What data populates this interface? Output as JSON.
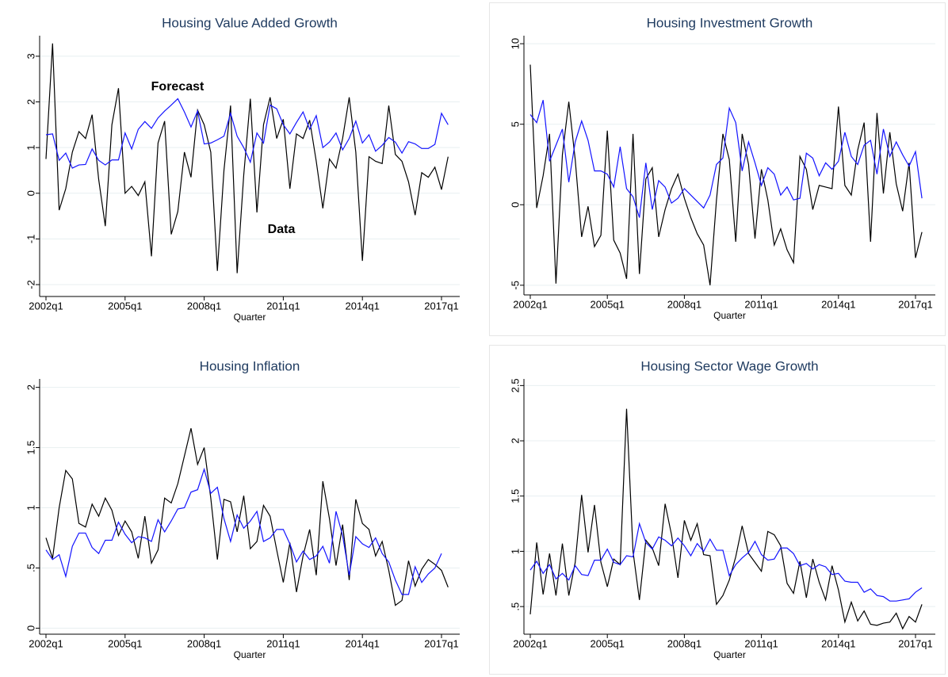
{
  "chart_data": [
    {
      "type": "line",
      "title": "Housing Value Added Growth",
      "xlabel": "Quarter",
      "categories": [
        "2002q1",
        null,
        null,
        null,
        null,
        null,
        null,
        null,
        null,
        null,
        null,
        null,
        "2005q1",
        null,
        null,
        null,
        null,
        null,
        null,
        null,
        null,
        null,
        null,
        null,
        "2008q1",
        null,
        null,
        null,
        null,
        null,
        null,
        null,
        null,
        null,
        null,
        null,
        "2011q1",
        null,
        null,
        null,
        null,
        null,
        null,
        null,
        null,
        null,
        null,
        null,
        "2014q1",
        null,
        null,
        null,
        null,
        null,
        null,
        null,
        null,
        null,
        null,
        null,
        "2017q1",
        null
      ],
      "ylim": [
        -2.26,
        3.45
      ],
      "yticks": [
        -2,
        -1,
        0,
        1,
        2,
        3
      ],
      "grid": true,
      "series": [
        {
          "name": "Data",
          "color": "#000000",
          "values": [
            0.75,
            3.28,
            -0.37,
            0.1,
            0.9,
            1.35,
            1.2,
            1.72,
            0.3,
            -0.72,
            1.5,
            2.3,
            0,
            0.15,
            -0.05,
            0.25,
            -1.38,
            1.1,
            1.58,
            -0.9,
            -0.4,
            0.9,
            0.35,
            1.82,
            1.5,
            0.9,
            -1.7,
            0.5,
            1.92,
            -1.75,
            0.4,
            2.07,
            -0.42,
            1.5,
            2.1,
            1.2,
            1.62,
            0.1,
            1.3,
            1.2,
            1.6,
            0.7,
            -0.33,
            0.75,
            0.55,
            1.2,
            2.1,
            0.9,
            -1.48,
            0.8,
            0.7,
            0.65,
            1.92,
            0.85,
            0.7,
            0.25,
            -0.48,
            0.45,
            0.35,
            0.57,
            0.08,
            0.8
          ]
        },
        {
          "name": "Forecast",
          "color": "#1414ff",
          "values": [
            1.28,
            1.3,
            0.72,
            0.88,
            0.55,
            0.62,
            0.63,
            0.97,
            0.72,
            0.62,
            0.73,
            0.73,
            1.32,
            0.97,
            1.4,
            1.57,
            1.42,
            1.65,
            1.8,
            1.93,
            2.07,
            1.78,
            1.45,
            1.8,
            1.08,
            1.1,
            1.17,
            1.25,
            1.75,
            1.25,
            1.0,
            0.68,
            1.32,
            1.1,
            1.93,
            1.85,
            1.5,
            1.3,
            1.55,
            1.78,
            1.4,
            1.7,
            1.0,
            1.12,
            1.32,
            0.95,
            1.2,
            1.58,
            1.1,
            1.28,
            0.92,
            1.05,
            1.22,
            1.12,
            0.88,
            1.13,
            1.08,
            0.98,
            0.98,
            1.07,
            1.75,
            1.5
          ]
        }
      ]
    },
    {
      "type": "line",
      "title": "Housing Investment Growth",
      "xlabel": "Quarter",
      "categories": [
        "2002q1",
        null,
        null,
        null,
        null,
        null,
        null,
        null,
        null,
        null,
        null,
        null,
        "2005q1",
        null,
        null,
        null,
        null,
        null,
        null,
        null,
        null,
        null,
        null,
        null,
        "2008q1",
        null,
        null,
        null,
        null,
        null,
        null,
        null,
        null,
        null,
        null,
        null,
        "2011q1",
        null,
        null,
        null,
        null,
        null,
        null,
        null,
        null,
        null,
        null,
        null,
        "2014q1",
        null,
        null,
        null,
        null,
        null,
        null,
        null,
        null,
        null,
        null,
        null,
        "2017q1",
        null
      ],
      "ylim": [
        -5.6,
        10.5
      ],
      "yticks": [
        -5,
        0,
        5,
        10
      ],
      "grid": true,
      "series": [
        {
          "color": "#000000",
          "values": [
            8.7,
            -0.2,
            1.8,
            4.4,
            -4.9,
            3.1,
            6.4,
            2.8,
            -2.0,
            -0.1,
            -2.6,
            -1.9,
            4.6,
            -2.2,
            -3.0,
            -4.6,
            4.4,
            -4.3,
            1.6,
            2.3,
            -2.0,
            -0.3,
            1.0,
            1.9,
            0.4,
            -0.8,
            -1.8,
            -2.5,
            -5.0,
            0.3,
            4.4,
            2.8,
            -2.3,
            4.4,
            2.5,
            -2.1,
            2.2,
            0.3,
            -2.5,
            -1.5,
            -2.8,
            -3.6,
            3.0,
            2.2,
            -0.3,
            1.2,
            1.1,
            1.0,
            6.1,
            1.2,
            0.6,
            3.4,
            5.1,
            -2.3,
            5.7,
            0.7,
            4.5,
            1.3,
            -0.4,
            2.6,
            -3.3,
            -1.7
          ]
        },
        {
          "color": "#1414ff",
          "values": [
            5.6,
            5.1,
            6.5,
            2.7,
            3.7,
            4.7,
            1.4,
            3.9,
            5.2,
            4.0,
            2.1,
            2.1,
            1.9,
            1.1,
            3.6,
            1.0,
            0.5,
            -0.8,
            2.6,
            -0.3,
            1.5,
            1.1,
            0.1,
            0.4,
            1.0,
            0.6,
            0.2,
            -0.2,
            0.6,
            2.5,
            2.9,
            6.0,
            5.1,
            2.1,
            3.9,
            2.6,
            1.2,
            2.3,
            1.9,
            0.6,
            1.1,
            0.3,
            0.4,
            3.2,
            2.9,
            1.8,
            2.6,
            2.2,
            2.7,
            4.5,
            3.0,
            2.5,
            3.7,
            4.0,
            1.9,
            4.7,
            3.0,
            3.9,
            3.1,
            2.4,
            3.3,
            0.4
          ]
        }
      ]
    },
    {
      "type": "line",
      "title": "Housing Inflation",
      "xlabel": "Quarter",
      "categories": [
        "2002q1",
        null,
        null,
        null,
        null,
        null,
        null,
        null,
        null,
        null,
        null,
        null,
        "2005q1",
        null,
        null,
        null,
        null,
        null,
        null,
        null,
        null,
        null,
        null,
        null,
        "2008q1",
        null,
        null,
        null,
        null,
        null,
        null,
        null,
        null,
        null,
        null,
        null,
        "2011q1",
        null,
        null,
        null,
        null,
        null,
        null,
        null,
        null,
        null,
        null,
        null,
        "2014q1",
        null,
        null,
        null,
        null,
        null,
        null,
        null,
        null,
        null,
        null,
        null,
        "2017q1",
        null
      ],
      "ylim": [
        -0.05,
        2.07
      ],
      "yticks": [
        0,
        {
          "value": 0.5,
          "label": ".5"
        },
        1,
        1.5,
        2
      ],
      "grid": true,
      "series": [
        {
          "color": "#000000",
          "values": [
            0.75,
            0.58,
            1.0,
            1.31,
            1.24,
            0.87,
            0.84,
            1.03,
            0.93,
            1.08,
            0.98,
            0.77,
            0.89,
            0.8,
            0.58,
            0.93,
            0.54,
            0.65,
            1.08,
            1.04,
            1.2,
            1.43,
            1.66,
            1.36,
            1.5,
            1.08,
            0.57,
            1.07,
            1.05,
            0.8,
            1.1,
            0.66,
            0.72,
            1.02,
            0.93,
            0.65,
            0.38,
            0.71,
            0.3,
            0.6,
            0.82,
            0.44,
            1.22,
            0.91,
            0.52,
            0.86,
            0.4,
            1.07,
            0.87,
            0.82,
            0.6,
            0.72,
            0.48,
            0.19,
            0.23,
            0.56,
            0.35,
            0.49,
            0.57,
            0.53,
            0.48,
            0.34
          ]
        },
        {
          "color": "#1414ff",
          "values": [
            0.65,
            0.57,
            0.61,
            0.43,
            0.68,
            0.79,
            0.79,
            0.67,
            0.62,
            0.73,
            0.73,
            0.88,
            0.78,
            0.71,
            0.76,
            0.75,
            0.72,
            0.9,
            0.8,
            0.89,
            0.99,
            1.0,
            1.13,
            1.15,
            1.32,
            1.12,
            1.17,
            0.91,
            0.72,
            0.94,
            0.83,
            0.89,
            0.97,
            0.72,
            0.75,
            0.82,
            0.82,
            0.7,
            0.55,
            0.64,
            0.57,
            0.6,
            0.68,
            0.54,
            0.97,
            0.77,
            0.44,
            0.76,
            0.7,
            0.67,
            0.75,
            0.62,
            0.55,
            0.4,
            0.28,
            0.28,
            0.51,
            0.38,
            0.45,
            0.5,
            0.62,
            null
          ]
        }
      ]
    },
    {
      "type": "line",
      "title": "Housing Sector Wage Growth",
      "xlabel": "Quarter",
      "categories": [
        "2002q1",
        null,
        null,
        null,
        null,
        null,
        null,
        null,
        null,
        null,
        null,
        null,
        "2005q1",
        null,
        null,
        null,
        null,
        null,
        null,
        null,
        null,
        null,
        null,
        null,
        "2008q1",
        null,
        null,
        null,
        null,
        null,
        null,
        null,
        null,
        null,
        null,
        null,
        "2011q1",
        null,
        null,
        null,
        null,
        null,
        null,
        null,
        null,
        null,
        null,
        null,
        "2014q1",
        null,
        null,
        null,
        null,
        null,
        null,
        null,
        null,
        null,
        null,
        null,
        "2017q1",
        null
      ],
      "ylim": [
        0.25,
        2.56
      ],
      "yticks": [
        {
          "value": 0.5,
          "label": ".5"
        },
        1,
        1.5,
        2,
        2.5
      ],
      "grid": true,
      "series": [
        {
          "color": "#000000",
          "values": [
            0.43,
            1.08,
            0.61,
            0.98,
            0.6,
            1.07,
            0.6,
            0.9,
            1.51,
            0.99,
            1.42,
            0.9,
            0.68,
            0.93,
            0.88,
            2.29,
            1.0,
            0.56,
            1.1,
            1.03,
            0.87,
            1.43,
            1.15,
            0.76,
            1.28,
            1.1,
            1.25,
            0.97,
            0.96,
            0.52,
            0.6,
            0.74,
            0.95,
            1.23,
            0.98,
            0.9,
            0.82,
            1.18,
            1.15,
            1.05,
            0.71,
            0.62,
            0.91,
            0.58,
            0.93,
            0.72,
            0.56,
            0.87,
            0.65,
            0.36,
            0.54,
            0.37,
            0.46,
            0.34,
            0.33,
            0.35,
            0.36,
            0.44,
            0.3,
            0.41,
            0.36,
            0.52
          ]
        },
        {
          "color": "#1414ff",
          "values": [
            0.83,
            0.91,
            0.8,
            0.88,
            0.75,
            0.8,
            0.74,
            0.87,
            0.79,
            0.78,
            0.92,
            0.92,
            1.02,
            0.9,
            0.88,
            0.96,
            0.95,
            1.25,
            1.08,
            1.02,
            1.13,
            1.1,
            1.05,
            1.12,
            1.05,
            0.96,
            1.07,
            1.0,
            1.11,
            1.01,
            1.01,
            0.78,
            0.88,
            0.94,
            0.99,
            1.09,
            0.97,
            0.92,
            0.93,
            1.03,
            1.03,
            0.98,
            0.87,
            0.89,
            0.84,
            0.88,
            0.86,
            0.79,
            0.8,
            0.73,
            0.72,
            0.72,
            0.63,
            0.66,
            0.6,
            0.59,
            0.55,
            0.55,
            0.56,
            0.57,
            0.63,
            0.67
          ]
        }
      ]
    }
  ]
}
